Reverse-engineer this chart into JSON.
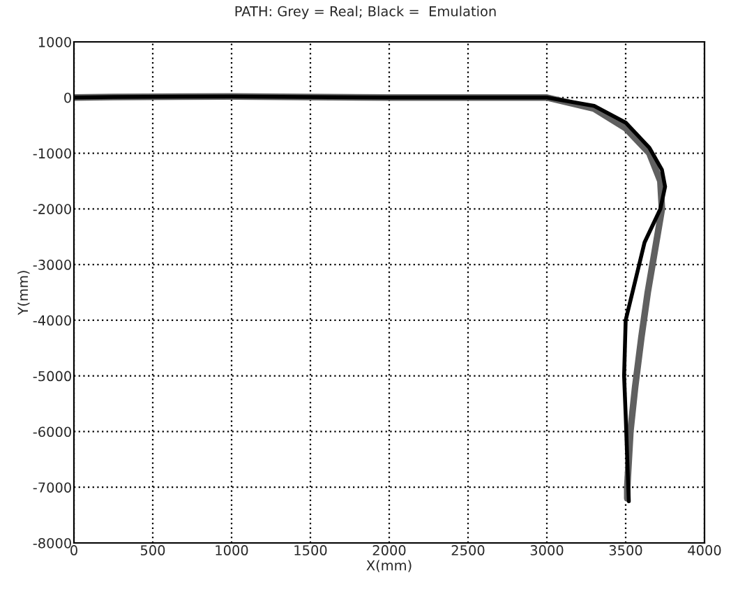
{
  "chart_data": {
    "type": "line",
    "title": "PATH: Grey = Real; Black =  Emulation",
    "xlabel": "X(mm)",
    "ylabel": "Y(mm)",
    "xlim": [
      0,
      4000
    ],
    "ylim": [
      -8000,
      1000
    ],
    "xticks": [
      0,
      500,
      1000,
      1500,
      2000,
      2500,
      3000,
      3500,
      4000
    ],
    "yticks": [
      -8000,
      -7000,
      -6000,
      -5000,
      -4000,
      -3000,
      -2000,
      -1000,
      0,
      1000
    ],
    "grid": true,
    "line_style": "solid",
    "marker": "none",
    "series": [
      {
        "color": "#606060",
        "x": [
          0,
          250,
          1000,
          2000,
          3000,
          3300,
          3500,
          3650,
          3720,
          3730,
          3700,
          3640,
          3600,
          3560,
          3530,
          3510,
          3510
        ],
        "values": [
          0,
          10,
          20,
          0,
          0,
          -200,
          -550,
          -1000,
          -1500,
          -2000,
          -2500,
          -3500,
          -4300,
          -5200,
          -6000,
          -7000,
          -7200
        ]
      },
      {
        "color": "#000000",
        "x": [
          0,
          250,
          1000,
          2000,
          3000,
          3300,
          3500,
          3650,
          3730,
          3750,
          3720,
          3620,
          3560,
          3500,
          3490,
          3500,
          3510,
          3520
        ],
        "values": [
          0,
          10,
          20,
          0,
          0,
          -150,
          -450,
          -900,
          -1300,
          -1600,
          -2000,
          -2600,
          -3300,
          -4000,
          -5000,
          -5700,
          -6500,
          -7250
        ]
      }
    ]
  }
}
